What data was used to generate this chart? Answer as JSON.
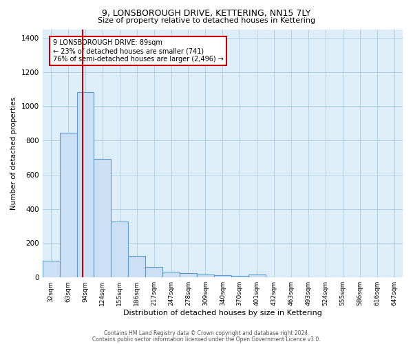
{
  "title": "9, LONSBOROUGH DRIVE, KETTERING, NN15 7LY",
  "subtitle": "Size of property relative to detached houses in Kettering",
  "xlabel": "Distribution of detached houses by size in Kettering",
  "ylabel": "Number of detached properties",
  "categories": [
    "32sqm",
    "63sqm",
    "94sqm",
    "124sqm",
    "155sqm",
    "186sqm",
    "217sqm",
    "247sqm",
    "278sqm",
    "309sqm",
    "340sqm",
    "370sqm",
    "401sqm",
    "432sqm",
    "463sqm",
    "493sqm",
    "524sqm",
    "555sqm",
    "586sqm",
    "616sqm",
    "647sqm"
  ],
  "values": [
    97,
    843,
    1081,
    693,
    327,
    124,
    62,
    34,
    24,
    16,
    11,
    8,
    17,
    0,
    0,
    0,
    0,
    0,
    0,
    0,
    0
  ],
  "bar_color": "#cce0f5",
  "bar_edge_color": "#5b9bd5",
  "vline_color": "#cc0000",
  "annotation_line1": "9 LONSBOROUGH DRIVE: 89sqm",
  "annotation_line2": "← 23% of detached houses are smaller (741)",
  "annotation_line3": "76% of semi-detached houses are larger (2,496) →",
  "annotation_box_color": "#ffffff",
  "annotation_box_edge": "#cc0000",
  "background_color": "#ddeef9",
  "footer_line1": "Contains HM Land Registry data © Crown copyright and database right 2024.",
  "footer_line2": "Contains public sector information licensed under the Open Government Licence v3.0.",
  "ylim": [
    0,
    1450
  ],
  "yticks": [
    0,
    200,
    400,
    600,
    800,
    1000,
    1200,
    1400
  ],
  "vline_xindex": 1.85
}
